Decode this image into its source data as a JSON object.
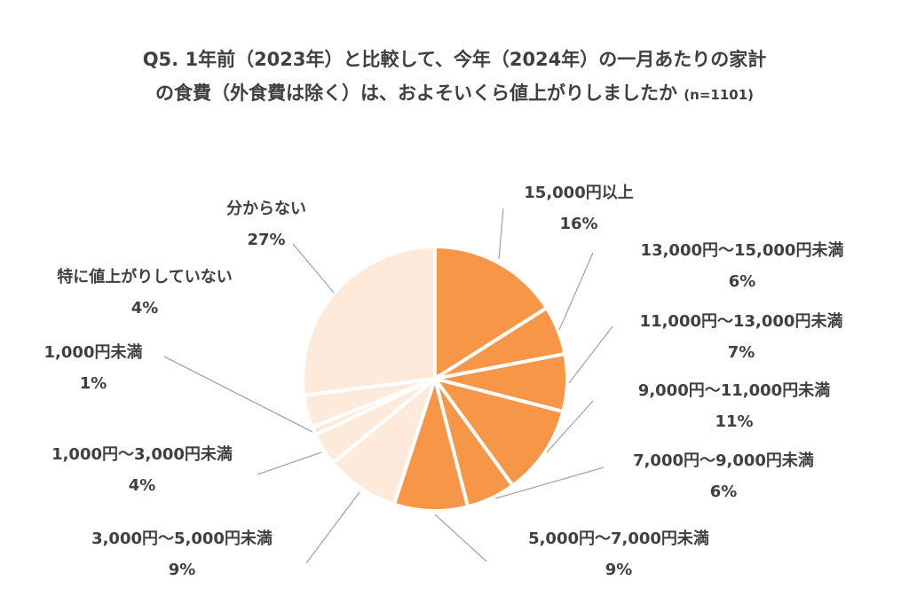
{
  "chart_data": {
    "type": "pie",
    "title_line1": "Q5. 1年前（2023年）と比較して、今年（2024年）の一月あたりの家計",
    "title_line2": "の食費（外食費は除く）は、およそいくら値上がりしましたか",
    "sample_note": "(n=1101)",
    "start": "12 o'clock, clockwise",
    "colors": {
      "dark": "#F79646",
      "light": "#FDEADA",
      "leader": "#A6A6A6"
    },
    "slices": [
      {
        "label": "15,000円以上",
        "value": 16,
        "value_label": "16%",
        "color": "dark"
      },
      {
        "label": "13,000円～15,000円未満",
        "value": 6,
        "value_label": "6%",
        "color": "dark"
      },
      {
        "label": "11,000円～13,000円未満",
        "value": 7,
        "value_label": "7%",
        "color": "dark"
      },
      {
        "label": "9,000円～11,000円未満",
        "value": 11,
        "value_label": "11%",
        "color": "dark"
      },
      {
        "label": "7,000円～9,000円未満",
        "value": 6,
        "value_label": "6%",
        "color": "dark"
      },
      {
        "label": "5,000円～7,000円未満",
        "value": 9,
        "value_label": "9%",
        "color": "dark"
      },
      {
        "label": "3,000円～5,000円未満",
        "value": 9,
        "value_label": "9%",
        "color": "light"
      },
      {
        "label": "1,000円～3,000円未満",
        "value": 4,
        "value_label": "4%",
        "color": "light"
      },
      {
        "label": "1,000円未満",
        "value": 1,
        "value_label": "1%",
        "color": "light"
      },
      {
        "label": "特に値上がりしていない",
        "value": 4,
        "value_label": "4%",
        "color": "light"
      },
      {
        "label": "分からない",
        "value": 27,
        "value_label": "27%",
        "color": "light"
      }
    ]
  }
}
